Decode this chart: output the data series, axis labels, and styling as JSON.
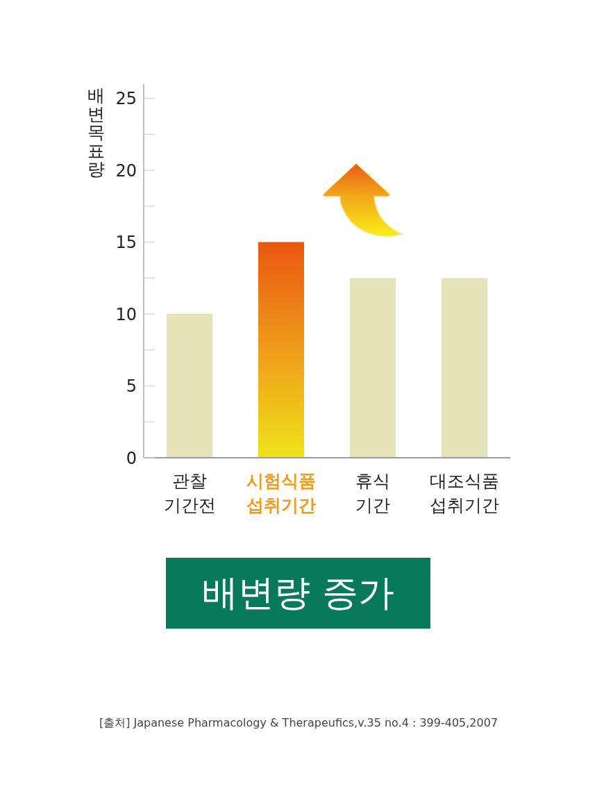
{
  "chart_data": {
    "type": "bar",
    "ylabel": "배변목표량",
    "categories": [
      "관찰\n기간전",
      "시험식품\n섭취기간",
      "휴식\n기간",
      "대조식품\n섭취기간"
    ],
    "values": [
      10,
      15,
      12.5,
      12.5
    ],
    "colors": [
      "#e5e3b8",
      "#ef9c1a",
      "#e5e3b8",
      "#e5e3b8"
    ],
    "ylim": [
      0,
      26
    ],
    "yticks": [
      0,
      {
        "value": 2.5,
        "label": null
      },
      5,
      {
        "value": 7.5,
        "label": null
      },
      10,
      {
        "value": 12.5,
        "label": null
      },
      15,
      {
        "value": 17.5,
        "label": null
      },
      20,
      {
        "value": 22.5,
        "label": null
      },
      25
    ],
    "annotations": [
      "배변량 증가",
      "[출처] Japanese Pharmacology & Therapeufics,v.35 no.4 : 399-405,2007"
    ]
  }
}
